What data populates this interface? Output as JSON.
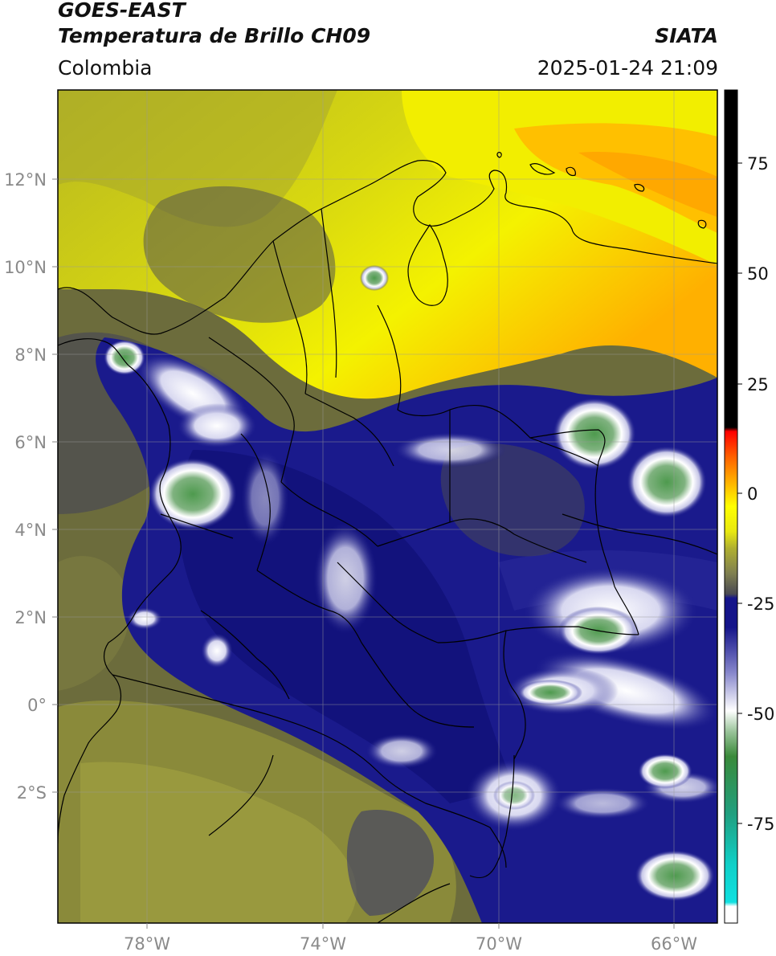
{
  "header": {
    "satellite": "GOES-EAST",
    "product": "Temperatura de Brillo CH09",
    "region": "Colombia",
    "agency": "SIATA",
    "datetime": "2025-01-24 21:09"
  },
  "map": {
    "lon_range": [
      -80,
      -65
    ],
    "lat_range": [
      -5,
      14
    ],
    "lon_ticks": [
      "78°W",
      "74°W",
      "70°W",
      "66°W"
    ],
    "lat_ticks": [
      "12°N",
      "10°N",
      "8°N",
      "6°N",
      "4°N",
      "2°N",
      "0°",
      "2°S"
    ],
    "grid": true
  },
  "colorbar": {
    "range": [
      -95,
      90
    ],
    "ticks": [
      "75",
      "50",
      "25",
      "0",
      "-25",
      "-50",
      "-75"
    ],
    "colors": {
      "warm_yellow": "#f4f200",
      "orange": "#ff9900",
      "red": "#ff0000",
      "olive": "#a8a830",
      "dark_gray": "#4a4a52",
      "navy": "#14148a",
      "white": "#ffffff",
      "green": "#3a8a3a",
      "cyan": "#10e0e0",
      "black": "#000000"
    }
  }
}
